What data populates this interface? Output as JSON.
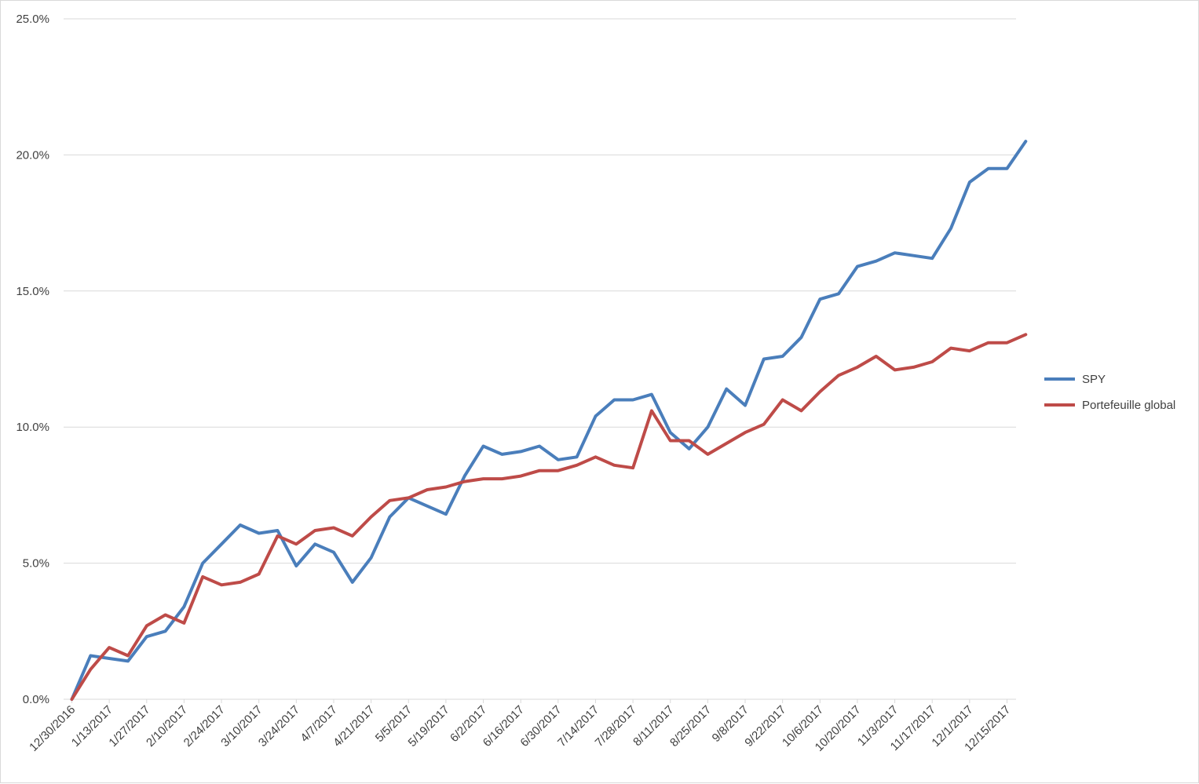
{
  "chart_data": {
    "type": "line",
    "title": "",
    "xlabel": "",
    "ylabel": "",
    "ylim": [
      0,
      25
    ],
    "y_ticks": [
      "0.0%",
      "5.0%",
      "10.0%",
      "15.0%",
      "20.0%",
      "25.0%"
    ],
    "y_tick_values": [
      0,
      5,
      10,
      15,
      20,
      25
    ],
    "grid": "horizontal",
    "legend_position": "right",
    "x_tick_labels": [
      "12/30/2016",
      "1/13/2017",
      "1/27/2017",
      "2/10/2017",
      "2/24/2017",
      "3/10/2017",
      "3/24/2017",
      "4/7/2017",
      "4/21/2017",
      "5/5/2017",
      "5/19/2017",
      "6/2/2017",
      "6/16/2017",
      "6/30/2017",
      "7/14/2017",
      "7/28/2017",
      "8/11/2017",
      "8/25/2017",
      "9/8/2017",
      "9/22/2017",
      "10/6/2017",
      "10/20/2017",
      "11/3/2017",
      "11/17/2017",
      "12/1/2017",
      "12/15/2017"
    ],
    "x": [
      "12/30/2016",
      "1/6/2017",
      "1/13/2017",
      "1/20/2017",
      "1/27/2017",
      "2/3/2017",
      "2/10/2017",
      "2/17/2017",
      "2/24/2017",
      "3/3/2017",
      "3/10/2017",
      "3/17/2017",
      "3/24/2017",
      "3/31/2017",
      "4/7/2017",
      "4/14/2017",
      "4/21/2017",
      "4/28/2017",
      "5/5/2017",
      "5/12/2017",
      "5/19/2017",
      "5/26/2017",
      "6/2/2017",
      "6/9/2017",
      "6/16/2017",
      "6/23/2017",
      "6/30/2017",
      "7/7/2017",
      "7/14/2017",
      "7/21/2017",
      "7/28/2017",
      "8/4/2017",
      "8/11/2017",
      "8/18/2017",
      "8/25/2017",
      "9/1/2017",
      "9/8/2017",
      "9/15/2017",
      "9/22/2017",
      "9/29/2017",
      "10/6/2017",
      "10/13/2017",
      "10/20/2017",
      "10/27/2017",
      "11/3/2017",
      "11/10/2017",
      "11/17/2017",
      "11/24/2017",
      "12/1/2017",
      "12/8/2017",
      "12/15/2017",
      "12/22/2017"
    ],
    "series": [
      {
        "name": "SPY",
        "color": "#4a7ebb",
        "values": [
          0.0,
          1.6,
          1.5,
          1.4,
          2.3,
          2.5,
          3.4,
          5.0,
          5.7,
          6.4,
          6.1,
          6.2,
          4.9,
          5.7,
          5.4,
          4.3,
          5.2,
          6.7,
          7.4,
          7.1,
          6.8,
          8.2,
          9.3,
          9.0,
          9.1,
          9.3,
          8.8,
          8.9,
          10.4,
          11.0,
          11.0,
          11.2,
          9.8,
          9.2,
          10.0,
          11.4,
          10.8,
          12.5,
          12.6,
          13.3,
          14.7,
          14.9,
          15.9,
          16.1,
          16.4,
          16.3,
          16.2,
          17.3,
          19.0,
          19.5,
          19.5,
          20.5
        ]
      },
      {
        "name": "Portefeuille global",
        "color": "#be4b48",
        "values": [
          0.0,
          1.1,
          1.9,
          1.6,
          2.7,
          3.1,
          2.8,
          4.5,
          4.2,
          4.3,
          4.6,
          6.0,
          5.7,
          6.2,
          6.3,
          6.0,
          6.7,
          7.3,
          7.4,
          7.7,
          7.8,
          8.0,
          8.1,
          8.1,
          8.2,
          8.4,
          8.4,
          8.6,
          8.9,
          8.6,
          8.5,
          10.6,
          9.5,
          9.5,
          9.0,
          9.4,
          9.8,
          10.1,
          11.0,
          10.6,
          11.3,
          11.9,
          12.2,
          12.6,
          12.1,
          12.2,
          12.4,
          12.9,
          12.8,
          13.1,
          13.1,
          13.4
        ]
      }
    ]
  }
}
